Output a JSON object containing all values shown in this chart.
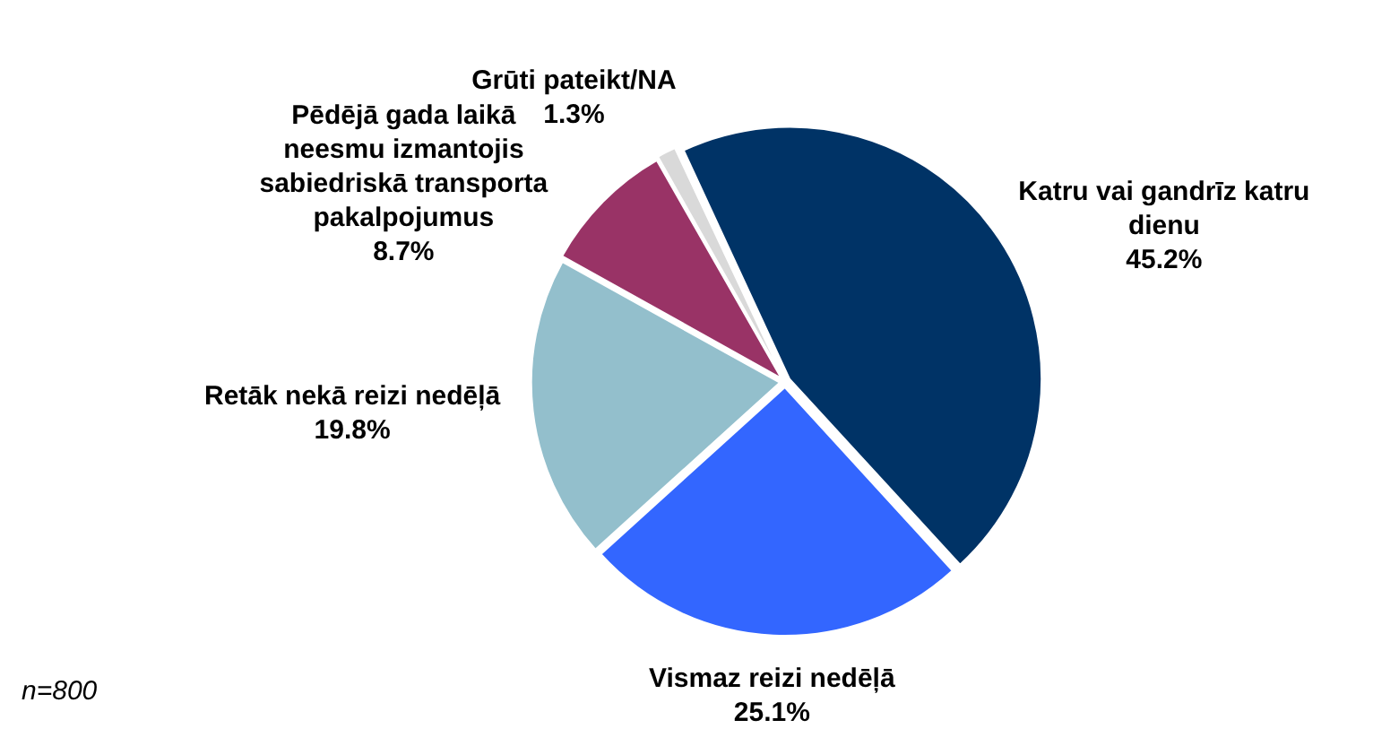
{
  "chart_data": {
    "type": "pie",
    "categories": [
      "Katru vai gandrīz katru dienu",
      "Vismaz reizi nedēļā",
      "Retāk nekā reizi nedēļā",
      "Pēdējā gada laikā neesmu izmantojis sabiedriskā transporta pakalpojumus",
      "Grūti pateikt/NA"
    ],
    "values": [
      45.2,
      25.1,
      19.8,
      8.7,
      1.3
    ],
    "colors": [
      "#003366",
      "#3366ff",
      "#93bfcc",
      "#993366",
      "#d9d9d9"
    ],
    "value_labels": [
      "45.2%",
      "25.1%",
      "19.8%",
      "8.7%",
      "1.3%"
    ],
    "legend": false,
    "annotations": [
      "n=800"
    ]
  }
}
